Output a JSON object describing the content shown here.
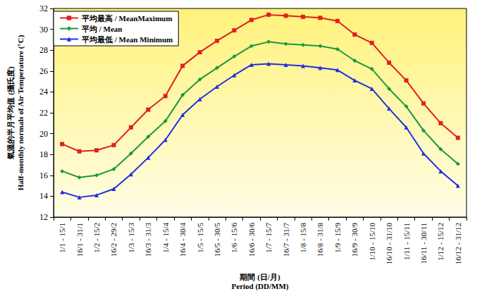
{
  "chart_data": {
    "type": "line",
    "ylabel": [
      "氣溫的半月平均值 (攝氏度)",
      "Half-monthly normals of Air Temperature (°C)"
    ],
    "xlabel": [
      "期間 (日/月)",
      "Period (DD/MM)"
    ],
    "categories": [
      "1/1 - 15/1",
      "16/1 - 31/1",
      "1/2 - 15/2",
      "16/2 - 29/2",
      "1/3 - 15/3",
      "16/3 - 31/3",
      "1/4 - 15/4",
      "16/4 - 30/4",
      "1/5 - 15/5",
      "16/5 - 30/5",
      "1/6 - 15/6",
      "16/6 - 30/6",
      "1/7 - 15/7",
      "16/7 - 31/7",
      "1/8 - 15/8",
      "16/8 - 31/8",
      "1/9 - 15/9",
      "16/9 - 30/9",
      "1/10 - 15/10",
      "16/10 - 31/10",
      "1/11 - 15/11",
      "16/11 - 30/11",
      "1/12 - 15/12",
      "16/12 - 31/12"
    ],
    "series": [
      {
        "name": "平均最高 / MeanMaximum",
        "color": "#e02020",
        "marker": "square",
        "line_style": "solid",
        "values": [
          19.0,
          18.3,
          18.4,
          18.9,
          20.6,
          22.3,
          23.6,
          26.5,
          27.8,
          28.9,
          29.9,
          30.9,
          31.4,
          31.3,
          31.2,
          31.1,
          30.8,
          29.5,
          28.7,
          26.8,
          25.1,
          22.9,
          21.0,
          19.6
        ]
      },
      {
        "name": "平均 / Mean",
        "color": "#1a9a3a",
        "marker": "diamond",
        "line_style": "solid",
        "values": [
          16.4,
          15.8,
          16.0,
          16.6,
          18.1,
          19.7,
          21.2,
          23.7,
          25.2,
          26.3,
          27.4,
          28.4,
          28.8,
          28.6,
          28.5,
          28.4,
          28.1,
          27.0,
          26.2,
          24.3,
          22.6,
          20.3,
          18.5,
          17.1
        ]
      },
      {
        "name": "平均最低 / Mean Minimum",
        "color": "#1f2fe0",
        "marker": "triangle",
        "line_style": "solid",
        "values": [
          14.4,
          13.9,
          14.1,
          14.7,
          16.1,
          17.7,
          19.4,
          21.8,
          23.3,
          24.5,
          25.6,
          26.6,
          26.7,
          26.6,
          26.5,
          26.3,
          26.1,
          25.1,
          24.3,
          22.4,
          20.6,
          18.1,
          16.4,
          15.0
        ]
      }
    ],
    "ylim": [
      12,
      32
    ],
    "yticks": [
      12,
      14,
      16,
      18,
      20,
      22,
      24,
      26,
      28,
      30,
      32
    ],
    "grid": false,
    "legend": "upper left"
  }
}
